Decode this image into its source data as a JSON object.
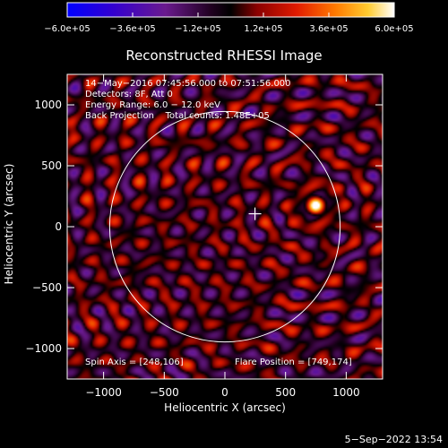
{
  "chart_data": {
    "type": "heatmap",
    "title": "Reconstructed RHESSI Image",
    "xlabel": "Heliocentric X (arcsec)",
    "ylabel": "Heliocentric Y (arcsec)",
    "xlim": [
      -1300,
      1300
    ],
    "ylim": [
      -1250,
      1250
    ],
    "x_ticks": [
      -1000,
      -500,
      0,
      500,
      1000
    ],
    "x_tick_labels": [
      "−1000",
      "−500",
      "0",
      "500",
      "1000"
    ],
    "y_ticks": [
      -1000,
      -500,
      0,
      500,
      1000
    ],
    "y_tick_labels": [
      "−1000",
      "−500",
      "0",
      "500",
      "1000"
    ],
    "colorbar": {
      "range": [
        -600000,
        600000
      ],
      "ticks": [
        -600000,
        -360000,
        -120000,
        120000,
        360000,
        600000
      ],
      "tick_labels": [
        "−6.0e+05",
        "−3.6e+05",
        "−1.2e+05",
        "1.2e+05",
        "3.6e+05",
        "6.0e+05"
      ],
      "colormap": [
        "#0000ff",
        "#4400cc",
        "#7a1a8c",
        "#000000",
        "#b40000",
        "#ff3a00",
        "#ff9a00",
        "#ffffff"
      ]
    },
    "annotations": {
      "time_range": "14−May−2016 07:45:56.000 to 07:51:56.000",
      "detectors": "Detectors: 8F, Att 0",
      "energy_range": "Energy Range: 6.0 − 12.0 keV",
      "method": "Back Projection",
      "total_counts": "Total counts: 1.48E+05",
      "spin_axis": "Spin Axis = [248,106]",
      "flare_position": "Flare Position = [749,174]"
    },
    "flare_position": [
      749,
      174
    ],
    "spin_axis": [
      248,
      106
    ],
    "solar_limb_radius": 950,
    "peak_value": 600000
  },
  "footer": {
    "timestamp": "5−Sep−2022 13:54"
  }
}
